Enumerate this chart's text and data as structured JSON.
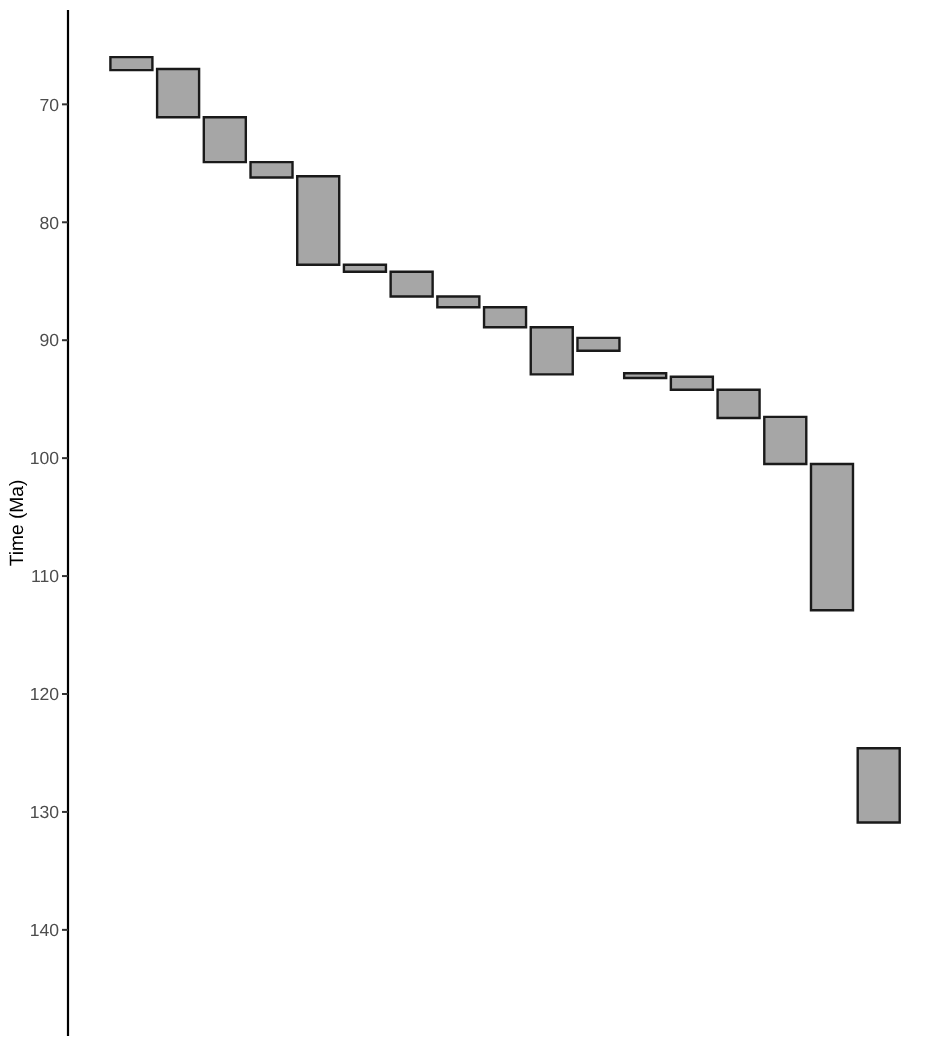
{
  "chart_data": {
    "type": "bar",
    "ylabel": "Time (Ma)",
    "categories": [
      null,
      null,
      null,
      null,
      null,
      null,
      null,
      null,
      null,
      null,
      null,
      null,
      null,
      null,
      null,
      null,
      null
    ],
    "base": [
      66.0,
      67.0,
      71.1,
      74.9,
      76.1,
      83.6,
      84.2,
      86.3,
      87.2,
      88.9,
      89.8,
      92.8,
      93.1,
      94.2,
      96.5,
      100.5,
      124.6
    ],
    "values": [
      1.1,
      4.1,
      3.8,
      1.3,
      7.5,
      0.6,
      2.1,
      0.9,
      1.7,
      4.0,
      1.1,
      0.4,
      1.1,
      2.4,
      4.0,
      12.4,
      6.3
    ],
    "color": "#a6a6a6",
    "ylim": [
      149,
      62
    ],
    "yticks": [
      70,
      80,
      90,
      100,
      110,
      120,
      130,
      140
    ],
    "tick_labels": "y"
  }
}
